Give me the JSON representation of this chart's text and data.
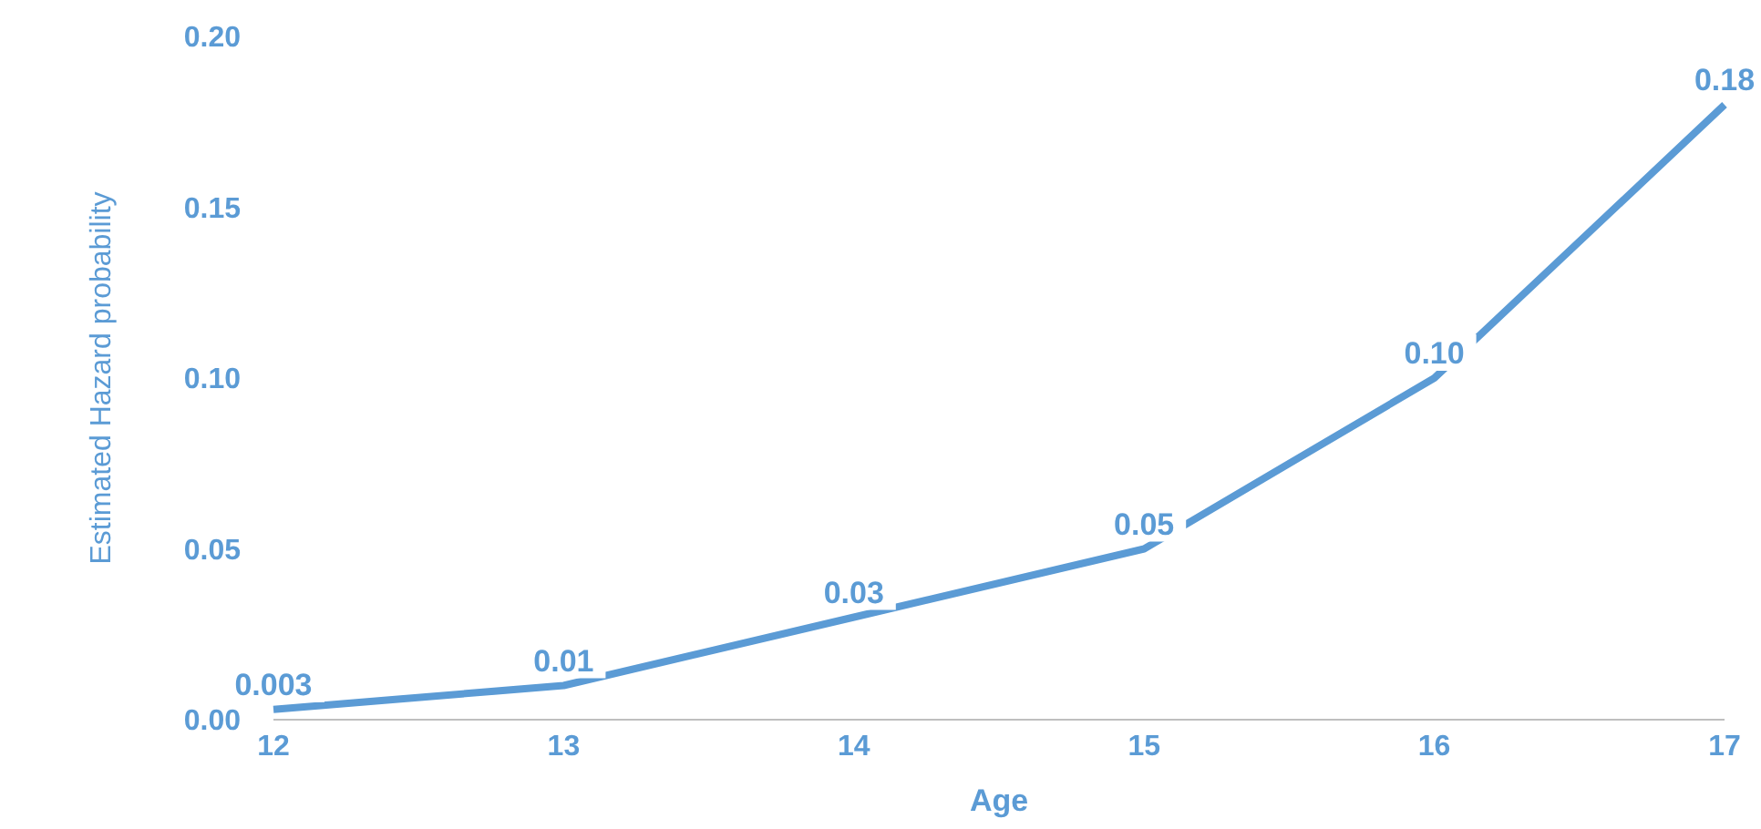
{
  "chart_data": {
    "type": "line",
    "xlabel": "Age",
    "ylabel": "Estimated Hazard probability",
    "categories": [
      "12",
      "13",
      "14",
      "15",
      "16",
      "17"
    ],
    "series": [
      {
        "color": "#5b9bd5",
        "values": [
          0.003,
          0.01,
          0.03,
          0.05,
          0.1,
          0.18
        ],
        "value_labels": [
          "0.003",
          "0.01",
          "0.03",
          "0.05",
          "0.10",
          "0.18"
        ]
      }
    ],
    "ylim": [
      0,
      0.2
    ],
    "yticks": [
      {
        "value": 0,
        "label": "0.00"
      },
      {
        "value": 0.05,
        "label": "0.05"
      },
      {
        "value": 0.1,
        "label": "0.10"
      },
      {
        "value": 0.15,
        "label": "0.15"
      },
      {
        "value": 0.2,
        "label": "0.20"
      }
    ],
    "grid": false,
    "legend": false,
    "marker": "none",
    "line_style": "solid"
  }
}
